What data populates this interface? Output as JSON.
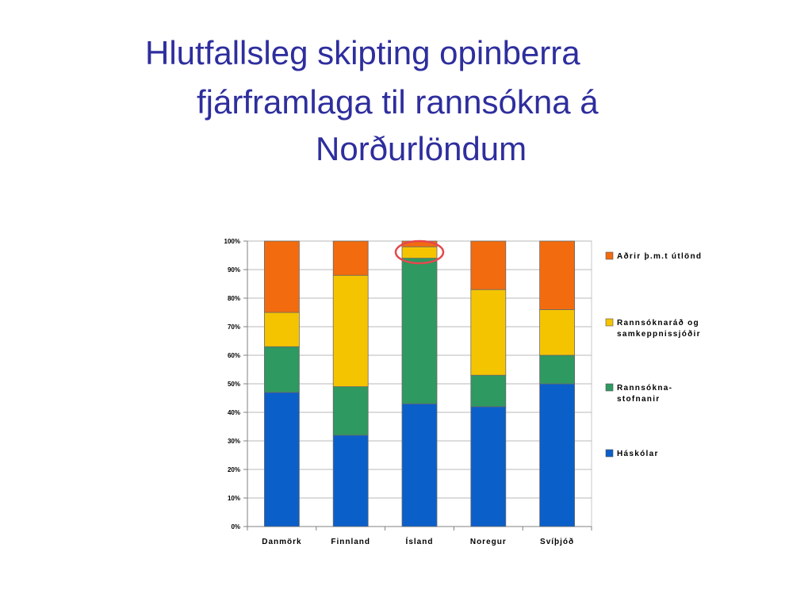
{
  "slide": {
    "title_lines": [
      "Hlutfallsleg skipting opinberra",
      "fjárframlaga til rannsókna á",
      "Norðurlöndum"
    ]
  },
  "chart_data": {
    "type": "bar",
    "stacked": true,
    "title": "",
    "xlabel": "",
    "ylabel": "",
    "ylim": [
      0,
      100
    ],
    "y_ticks": [
      "0%",
      "10%",
      "20%",
      "30%",
      "40%",
      "50%",
      "60%",
      "70%",
      "80%",
      "90%",
      "100%"
    ],
    "categories": [
      "Danmörk",
      "Finnland",
      "Ísland",
      "Noregur",
      "Svíþjóð"
    ],
    "series": [
      {
        "name": "Háskólar",
        "color": "#0b5fc9",
        "values": [
          47,
          32,
          43,
          42,
          50
        ]
      },
      {
        "name": "Rannsókna-stofnanir",
        "color": "#2e9960",
        "values": [
          16,
          17,
          51,
          11,
          10
        ]
      },
      {
        "name": "Rannsóknaráð og samkeppnissjóðir",
        "color": "#f5c400",
        "values": [
          12,
          39,
          4,
          30,
          16
        ]
      },
      {
        "name": "Aðrir þ.m.t útlönd",
        "color": "#f26b0f",
        "values": [
          25,
          12,
          2,
          17,
          24
        ]
      }
    ],
    "legend": {
      "placement": "right",
      "entries": [
        {
          "lines": [
            "Aðrir þ.m.t útlönd"
          ],
          "color": "#f26b0f"
        },
        {
          "lines": [
            "Rannsóknaráð og",
            "samkeppnissjóðir"
          ],
          "color": "#f5c400"
        },
        {
          "lines": [
            "Rannsókna-",
            "stofnanir"
          ],
          "color": "#2e9960"
        },
        {
          "lines": [
            "Háskólar"
          ],
          "color": "#0b5fc9"
        }
      ]
    },
    "gridlines": true,
    "highlight": {
      "category": "Ísland",
      "color": "#e5484d",
      "shape": "ellipse"
    }
  }
}
